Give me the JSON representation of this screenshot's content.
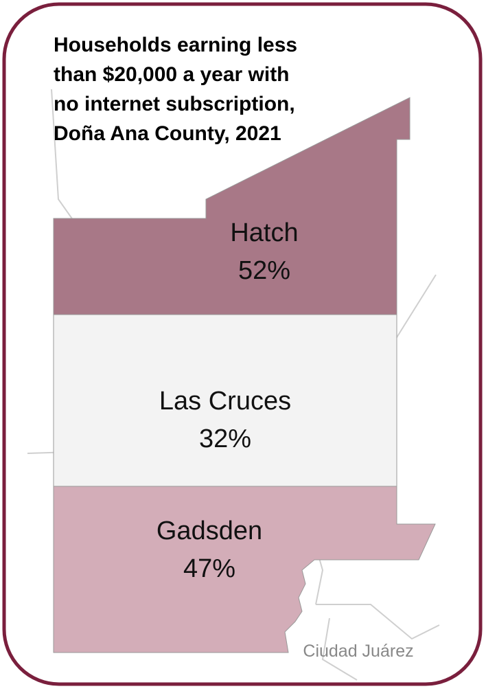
{
  "title": "Households earning less than $20,000 a year with no internet subscription, Doña Ana County, 2021",
  "regions": [
    {
      "name": "Hatch",
      "label": "52%",
      "color": "#a87887"
    },
    {
      "name": "Las Cruces",
      "label": "32%",
      "color": "#f3f3f3"
    },
    {
      "name": "Gadsden",
      "label": "47%",
      "color": "#d3adb8"
    }
  ],
  "place_label": "Ciudad Juárez"
}
